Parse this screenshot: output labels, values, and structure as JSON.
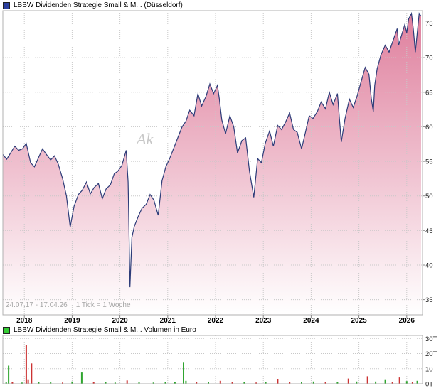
{
  "header": {
    "legend_label": "LBBW Dividenden Strategie Small & M... (Düsseldorf)"
  },
  "volume_header": {
    "legend_label": "LBBW Dividenden Strategie Small & M... Volumen in Euro"
  },
  "footer": {
    "range": "24.07.17 - 17.04.26",
    "tick": "1 Tick = 1 Woche"
  },
  "watermark": {
    "text": "Ak"
  },
  "colors": {
    "price_swatch": "#2b3f9e",
    "volume_swatch": "#33cc33",
    "line": "#2c3b78",
    "fill_top": "#df7f9d",
    "fill_bottom": "#ffffff",
    "grid": "#c8c8c8",
    "border": "#b0b0b0",
    "axis_text": "#222222",
    "tick_mark": "#888888",
    "volume_up": "#2fa52f",
    "volume_down": "#cc3333"
  },
  "chart_data": [
    {
      "type": "area",
      "title": "LBBW Dividenden Strategie Small & M... (Düsseldorf)",
      "xlabel": "",
      "ylabel": "",
      "xlim": [
        2017.55,
        2026.33
      ],
      "ylim": [
        32.8,
        76.8
      ],
      "x_ticks": [
        2018,
        2019,
        2020,
        2021,
        2022,
        2023,
        2024,
        2025,
        2026
      ],
      "y_ticks": [
        35,
        40,
        45,
        50,
        55,
        60,
        65,
        70,
        75
      ],
      "grid": true,
      "legend_position": "top-left",
      "x": [
        2017.55,
        2017.63,
        2017.71,
        2017.8,
        2017.88,
        2017.96,
        2018.04,
        2018.13,
        2018.21,
        2018.3,
        2018.38,
        2018.46,
        2018.55,
        2018.63,
        2018.71,
        2018.8,
        2018.88,
        2018.96,
        2019.04,
        2019.13,
        2019.21,
        2019.3,
        2019.38,
        2019.46,
        2019.55,
        2019.63,
        2019.71,
        2019.8,
        2019.88,
        2019.96,
        2020.04,
        2020.13,
        2020.17,
        2020.21,
        2020.25,
        2020.3,
        2020.38,
        2020.46,
        2020.55,
        2020.63,
        2020.71,
        2020.8,
        2020.88,
        2020.96,
        2021.04,
        2021.13,
        2021.21,
        2021.3,
        2021.38,
        2021.46,
        2021.55,
        2021.63,
        2021.71,
        2021.8,
        2021.88,
        2021.96,
        2022.04,
        2022.08,
        2022.13,
        2022.21,
        2022.3,
        2022.38,
        2022.46,
        2022.55,
        2022.63,
        2022.71,
        2022.8,
        2022.88,
        2022.96,
        2023.04,
        2023.13,
        2023.21,
        2023.3,
        2023.38,
        2023.46,
        2023.55,
        2023.63,
        2023.71,
        2023.8,
        2023.88,
        2023.96,
        2024.04,
        2024.13,
        2024.21,
        2024.3,
        2024.38,
        2024.46,
        2024.55,
        2024.63,
        2024.71,
        2024.8,
        2024.88,
        2024.96,
        2025.04,
        2025.13,
        2025.21,
        2025.26,
        2025.3,
        2025.33,
        2025.38,
        2025.46,
        2025.55,
        2025.63,
        2025.71,
        2025.8,
        2025.83,
        2025.88,
        2025.96,
        2026.0,
        2026.04,
        2026.1,
        2026.14,
        2026.18,
        2026.22,
        2026.26,
        2026.3
      ],
      "values": [
        56.0,
        55.3,
        56.2,
        57.2,
        56.6,
        56.8,
        57.6,
        54.8,
        54.2,
        55.6,
        56.8,
        56.0,
        55.2,
        55.8,
        54.6,
        52.5,
        50.0,
        45.5,
        48.5,
        50.2,
        50.8,
        52.0,
        50.3,
        51.2,
        51.8,
        49.6,
        51.0,
        51.6,
        53.2,
        53.6,
        54.4,
        56.6,
        52.0,
        36.8,
        44.0,
        45.6,
        47.0,
        48.2,
        48.8,
        50.2,
        49.4,
        47.2,
        52.2,
        54.2,
        55.4,
        57.0,
        58.4,
        60.0,
        60.8,
        62.4,
        61.6,
        64.8,
        63.0,
        64.4,
        66.2,
        64.8,
        66.0,
        64.0,
        61.0,
        59.0,
        61.6,
        60.0,
        56.2,
        58.0,
        58.4,
        53.6,
        49.8,
        55.4,
        54.8,
        57.6,
        59.4,
        57.2,
        60.2,
        59.6,
        60.6,
        62.0,
        59.6,
        59.2,
        56.8,
        59.2,
        61.6,
        61.2,
        62.2,
        63.6,
        62.6,
        65.0,
        63.2,
        64.8,
        57.8,
        61.2,
        64.0,
        62.8,
        64.4,
        66.4,
        68.6,
        67.6,
        64.0,
        62.2,
        66.0,
        68.4,
        70.4,
        71.8,
        70.8,
        72.4,
        74.2,
        71.8,
        73.0,
        74.8,
        73.6,
        75.6,
        76.4,
        74.0,
        70.8,
        73.6,
        76.4,
        76.0
      ]
    },
    {
      "type": "bar",
      "title": "LBBW Dividenden Strategie Small & M... Volumen in Euro",
      "xlabel": "",
      "ylabel": "Volumen in Euro",
      "xlim": [
        2017.55,
        2026.33
      ],
      "ylim": [
        0,
        32
      ],
      "y_ticks": [
        0,
        10,
        20,
        30
      ],
      "y_tick_suffix": "T",
      "x_ticks": [
        2018,
        2019,
        2020,
        2021,
        2022,
        2023,
        2024,
        2025,
        2026
      ],
      "grid": true,
      "bars": [
        {
          "x": 2017.62,
          "v": 1.2,
          "c": "g"
        },
        {
          "x": 2017.67,
          "v": 12.0,
          "c": "g"
        },
        {
          "x": 2017.75,
          "v": 1.0,
          "c": "r"
        },
        {
          "x": 2017.95,
          "v": 0.8,
          "c": "g"
        },
        {
          "x": 2018.04,
          "v": 25.5,
          "c": "r"
        },
        {
          "x": 2018.08,
          "v": 2.5,
          "c": "r"
        },
        {
          "x": 2018.15,
          "v": 13.5,
          "c": "r"
        },
        {
          "x": 2018.3,
          "v": 1.0,
          "c": "g"
        },
        {
          "x": 2018.55,
          "v": 1.4,
          "c": "g"
        },
        {
          "x": 2018.8,
          "v": 0.8,
          "c": "r"
        },
        {
          "x": 2019.0,
          "v": 1.5,
          "c": "g"
        },
        {
          "x": 2019.2,
          "v": 7.5,
          "c": "g"
        },
        {
          "x": 2019.45,
          "v": 1.0,
          "c": "r"
        },
        {
          "x": 2019.7,
          "v": 1.2,
          "c": "g"
        },
        {
          "x": 2019.9,
          "v": 0.8,
          "c": "g"
        },
        {
          "x": 2020.15,
          "v": 2.2,
          "c": "r"
        },
        {
          "x": 2020.4,
          "v": 1.0,
          "c": "g"
        },
        {
          "x": 2020.7,
          "v": 0.8,
          "c": "g"
        },
        {
          "x": 2020.95,
          "v": 1.2,
          "c": "g"
        },
        {
          "x": 2021.15,
          "v": 1.0,
          "c": "g"
        },
        {
          "x": 2021.33,
          "v": 14.0,
          "c": "g"
        },
        {
          "x": 2021.38,
          "v": 2.0,
          "c": "g"
        },
        {
          "x": 2021.6,
          "v": 1.0,
          "c": "r"
        },
        {
          "x": 2021.85,
          "v": 1.2,
          "c": "g"
        },
        {
          "x": 2022.1,
          "v": 2.0,
          "c": "r"
        },
        {
          "x": 2022.35,
          "v": 1.0,
          "c": "r"
        },
        {
          "x": 2022.6,
          "v": 1.2,
          "c": "g"
        },
        {
          "x": 2022.85,
          "v": 0.8,
          "c": "r"
        },
        {
          "x": 2023.05,
          "v": 1.0,
          "c": "g"
        },
        {
          "x": 2023.3,
          "v": 2.8,
          "c": "r"
        },
        {
          "x": 2023.55,
          "v": 1.0,
          "c": "r"
        },
        {
          "x": 2023.8,
          "v": 1.2,
          "c": "g"
        },
        {
          "x": 2024.05,
          "v": 1.5,
          "c": "g"
        },
        {
          "x": 2024.3,
          "v": 1.0,
          "c": "r"
        },
        {
          "x": 2024.55,
          "v": 1.2,
          "c": "g"
        },
        {
          "x": 2024.78,
          "v": 3.5,
          "c": "r"
        },
        {
          "x": 2024.95,
          "v": 1.5,
          "c": "g"
        },
        {
          "x": 2025.18,
          "v": 5.0,
          "c": "r"
        },
        {
          "x": 2025.35,
          "v": 1.5,
          "c": "g"
        },
        {
          "x": 2025.55,
          "v": 2.5,
          "c": "g"
        },
        {
          "x": 2025.7,
          "v": 1.0,
          "c": "r"
        },
        {
          "x": 2025.85,
          "v": 4.2,
          "c": "r"
        },
        {
          "x": 2026.0,
          "v": 1.8,
          "c": "g"
        },
        {
          "x": 2026.12,
          "v": 1.2,
          "c": "r"
        },
        {
          "x": 2026.22,
          "v": 2.0,
          "c": "g"
        }
      ]
    }
  ]
}
